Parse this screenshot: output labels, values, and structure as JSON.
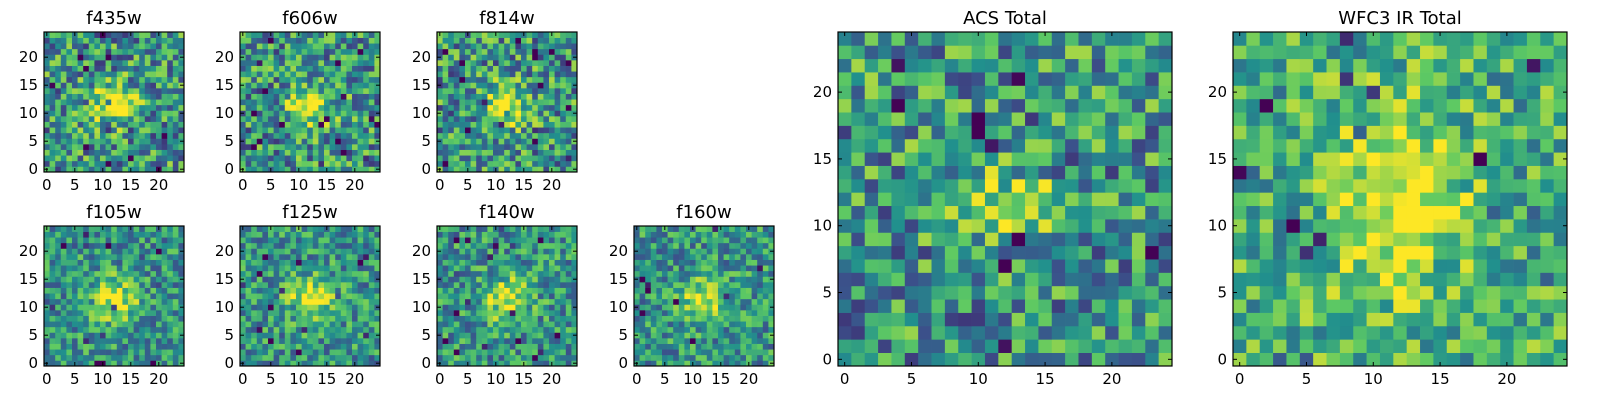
{
  "chart_data": [
    {
      "type": "heatmap",
      "title": "f435w",
      "xticks": [
        "0",
        "5",
        "10",
        "15",
        "20"
      ],
      "yticks": [
        "0",
        "5",
        "10",
        "15",
        "20"
      ],
      "xlim": [
        0,
        25
      ],
      "ylim": [
        0,
        25
      ],
      "source_band": "f435w"
    },
    {
      "type": "heatmap",
      "title": "f606w",
      "xticks": [
        "0",
        "5",
        "10",
        "15",
        "20"
      ],
      "yticks": [
        "0",
        "5",
        "10",
        "15",
        "20"
      ],
      "xlim": [
        0,
        25
      ],
      "ylim": [
        0,
        25
      ],
      "source_band": "f606w"
    },
    {
      "type": "heatmap",
      "title": "f814w",
      "xticks": [
        "0",
        "5",
        "10",
        "15",
        "20"
      ],
      "yticks": [
        "0",
        "5",
        "10",
        "15",
        "20"
      ],
      "xlim": [
        0,
        25
      ],
      "ylim": [
        0,
        25
      ],
      "source_band": "f814w"
    },
    {
      "type": "heatmap",
      "title": "f105w",
      "xticks": [
        "0",
        "5",
        "10",
        "15",
        "20"
      ],
      "yticks": [
        "0",
        "5",
        "10",
        "15",
        "20"
      ],
      "xlim": [
        0,
        25
      ],
      "ylim": [
        0,
        25
      ],
      "source_band": "f105w"
    },
    {
      "type": "heatmap",
      "title": "f125w",
      "xticks": [
        "0",
        "5",
        "10",
        "15",
        "20"
      ],
      "yticks": [
        "0",
        "5",
        "10",
        "15",
        "20"
      ],
      "xlim": [
        0,
        25
      ],
      "ylim": [
        0,
        25
      ],
      "source_band": "f125w"
    },
    {
      "type": "heatmap",
      "title": "f140w",
      "xticks": [
        "0",
        "5",
        "10",
        "15",
        "20"
      ],
      "yticks": [
        "0",
        "5",
        "10",
        "15",
        "20"
      ],
      "xlim": [
        0,
        25
      ],
      "ylim": [
        0,
        25
      ],
      "source_band": "f140w"
    },
    {
      "type": "heatmap",
      "title": "f160w",
      "xticks": [
        "0",
        "5",
        "10",
        "15",
        "20"
      ],
      "yticks": [
        "0",
        "5",
        "10",
        "15",
        "20"
      ],
      "xlim": [
        0,
        25
      ],
      "ylim": [
        0,
        25
      ],
      "source_band": "f160w"
    },
    {
      "type": "heatmap",
      "title": "ACS Total",
      "xticks": [
        "0",
        "5",
        "10",
        "15",
        "20"
      ],
      "yticks": [
        "0",
        "5",
        "10",
        "15",
        "20"
      ],
      "xlim": [
        0,
        25
      ],
      "ylim": [
        0,
        25
      ],
      "source_band": "acs"
    },
    {
      "type": "heatmap",
      "title": "WFC3 IR Total",
      "xticks": [
        "0",
        "5",
        "10",
        "15",
        "20"
      ],
      "yticks": [
        "0",
        "5",
        "10",
        "15",
        "20"
      ],
      "xlim": [
        0,
        25
      ],
      "ylim": [
        0,
        25
      ],
      "source_band": "wfc3"
    }
  ],
  "colormap": [
    "#440154",
    "#3b528b",
    "#21908d",
    "#5dc963",
    "#fde725"
  ]
}
